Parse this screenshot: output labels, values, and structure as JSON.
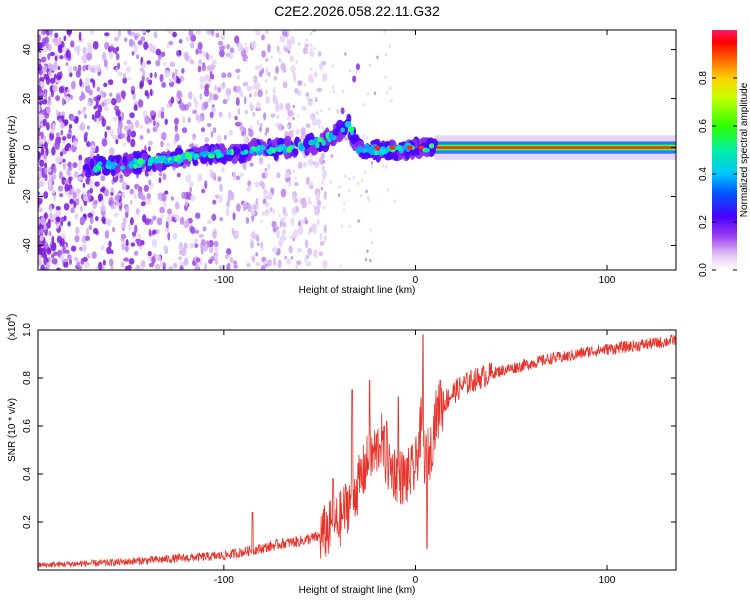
{
  "title": "C2E2.2026.058.22.11.G32",
  "colorbar": {
    "label": "Normalized spectral amplitude",
    "ticks": [
      0.0,
      0.2,
      0.4,
      0.6,
      0.8
    ],
    "tick_labels": [
      "0.0",
      "0.2",
      "0.4",
      "0.6",
      "0.8"
    ],
    "range": [
      0,
      1
    ]
  },
  "chart_data": [
    {
      "type": "heatmap",
      "xlabel": "Height of straight line (km)",
      "ylabel": "Frequency (Hz)",
      "xlim": [
        -197,
        136
      ],
      "ylim": [
        -50,
        48
      ],
      "x_ticks": [
        -100,
        0,
        100
      ],
      "x_tick_labels": [
        "-100",
        "0",
        "100"
      ],
      "y_ticks": [
        -40,
        -20,
        0,
        20,
        40
      ],
      "y_tick_labels": [
        "-40",
        "-20",
        "0",
        "20",
        "40"
      ],
      "ridge": {
        "description": "dominant frequency vs height",
        "x": [
          -170,
          -150,
          -130,
          -110,
          -95,
          -80,
          -65,
          -50,
          -40,
          -35,
          -30,
          -20,
          -10,
          0,
          10,
          50,
          100,
          136
        ],
        "y": [
          -8,
          -7,
          -5,
          -3,
          -2,
          -1,
          0,
          2,
          6,
          10,
          0,
          -1,
          -1,
          0,
          0,
          0,
          0,
          0
        ]
      }
    },
    {
      "type": "line",
      "xlabel": "Height of straight line (km)",
      "ylabel": "SNR (10 * v/v)",
      "y_scale_label": "(x10",
      "y_scale_exp": "4",
      "y_scale_close": ")",
      "xlim": [
        -197,
        136
      ],
      "ylim": [
        0,
        1.0
      ],
      "x_ticks": [
        -100,
        0,
        100
      ],
      "x_tick_labels": [
        "-100",
        "0",
        "100"
      ],
      "y_ticks": [
        0.2,
        0.4,
        0.6,
        0.8,
        1.0
      ],
      "y_tick_labels": [
        "0.2",
        "0.4",
        "0.6",
        "0.8",
        "1.0"
      ],
      "color": "#e8332b",
      "x": [
        -197,
        -180,
        -160,
        -140,
        -120,
        -100,
        -80,
        -70,
        -60,
        -50,
        -40,
        -35,
        -30,
        -25,
        -20,
        -18,
        -15,
        -10,
        -5,
        0,
        3,
        5,
        8,
        10,
        12,
        15,
        20,
        25,
        30,
        40,
        50,
        60,
        70,
        80,
        90,
        100,
        110,
        120,
        130,
        136
      ],
      "y": [
        0.02,
        0.025,
        0.03,
        0.04,
        0.05,
        0.06,
        0.09,
        0.11,
        0.12,
        0.14,
        0.2,
        0.28,
        0.35,
        0.45,
        0.5,
        0.55,
        0.45,
        0.4,
        0.38,
        0.42,
        0.6,
        0.45,
        0.5,
        0.62,
        0.66,
        0.7,
        0.74,
        0.77,
        0.79,
        0.82,
        0.84,
        0.86,
        0.88,
        0.89,
        0.91,
        0.92,
        0.93,
        0.94,
        0.95,
        0.96
      ],
      "spikes": [
        {
          "x": -85,
          "y": 0.24
        },
        {
          "x": -43,
          "y": 0.38
        },
        {
          "x": -33,
          "y": 0.75
        },
        {
          "x": -24,
          "y": 0.79
        },
        {
          "x": -15,
          "y": 0.62
        },
        {
          "x": -9,
          "y": 0.72
        },
        {
          "x": 4,
          "y": 0.98
        },
        {
          "x": 6,
          "y": 0.09
        },
        {
          "x": 13,
          "y": 0.79
        }
      ]
    }
  ]
}
